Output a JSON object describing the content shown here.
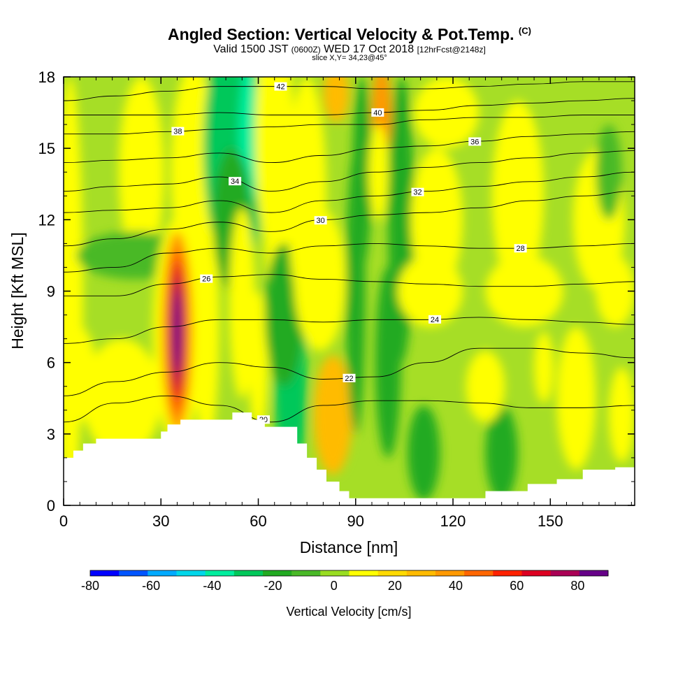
{
  "header": {
    "title": "Angled Section: Vertical Velocity & Pot.Temp.",
    "title_unit": "(C)",
    "valid_a": "Valid 1500 JST",
    "valid_z": "(0600Z)",
    "valid_b": "WED 17 Oct 2018",
    "fcst": "[12hrFcst@2148z]",
    "slice": "slice X,Y= 34,23@45°"
  },
  "chart_data": {
    "type": "heatmap",
    "xlabel": "Distance [nm]",
    "ylabel": "Height [Kft MSL]",
    "xlim": [
      0,
      176
    ],
    "ylim": [
      0,
      18
    ],
    "xticks": [
      "0",
      "30",
      "60",
      "90",
      "120",
      "150"
    ],
    "xtick_values": [
      0,
      30,
      60,
      90,
      120,
      150
    ],
    "yticks": [
      "0",
      "3",
      "6",
      "9",
      "12",
      "15",
      "18"
    ],
    "ytick_values": [
      0,
      3,
      6,
      9,
      12,
      15,
      18
    ],
    "colorbar": {
      "label": "Vertical Velocity [cm/s]",
      "ticks": [
        "-80",
        "-60",
        "-40",
        "-20",
        "0",
        "20",
        "40",
        "60",
        "80"
      ],
      "tick_values": [
        -80,
        -60,
        -40,
        -20,
        0,
        20,
        40,
        60,
        80
      ],
      "range": [
        -80,
        90
      ],
      "colors": [
        "#0000ff",
        "#0055ff",
        "#00aaff",
        "#00d7ea",
        "#00ee9e",
        "#00c85a",
        "#22aa22",
        "#4ab928",
        "#99dd22",
        "#ffff00",
        "#ffda00",
        "#ffbb00",
        "#ff9900",
        "#ff6600",
        "#ff2200",
        "#dd0022",
        "#aa0055",
        "#660088"
      ]
    },
    "vertical_velocity_features": [
      {
        "x": 35,
        "y": 7.2,
        "value": 88
      },
      {
        "x": 83,
        "y": 3.8,
        "value": 24
      },
      {
        "x": 85,
        "y": 17.5,
        "value": 32
      },
      {
        "x": 98,
        "y": 16.5,
        "value": 40
      },
      {
        "x": 57,
        "y": 15.5,
        "value": -38
      },
      {
        "x": 90,
        "y": 9.0,
        "value": -22
      },
      {
        "x": 111,
        "y": 2.2,
        "value": -15
      },
      {
        "x": 135,
        "y": 2.2,
        "value": -18
      },
      {
        "x": 70,
        "y": 5.0,
        "value": -25
      }
    ],
    "isentropes": [
      {
        "value": 42,
        "heights": [
          17.0,
          17.2,
          17.4,
          17.6,
          17.6,
          17.6,
          17.5,
          17.5,
          17.6,
          17.7,
          17.8,
          17.8
        ]
      },
      {
        "value": 40,
        "heights": [
          16.4,
          16.4,
          16.4,
          16.5,
          16.4,
          16.4,
          16.5,
          16.6,
          16.8,
          16.9,
          17.0,
          17.1
        ]
      },
      {
        "value": 38,
        "heights": [
          15.6,
          15.6,
          15.7,
          15.8,
          15.9,
          16.0,
          16.0,
          16.2,
          16.3,
          16.3,
          16.4,
          16.4
        ]
      },
      {
        "value": 36,
        "heights": [
          14.4,
          14.5,
          14.6,
          14.8,
          14.4,
          14.7,
          15.0,
          15.1,
          15.3,
          15.5,
          15.6,
          15.7
        ]
      },
      {
        "value": 34,
        "heights": [
          13.2,
          13.4,
          13.5,
          13.8,
          13.2,
          13.6,
          14.0,
          14.2,
          14.4,
          14.6,
          14.8,
          14.9
        ]
      },
      {
        "value": 32,
        "heights": [
          12.3,
          12.4,
          12.5,
          12.8,
          12.3,
          12.8,
          13.0,
          13.2,
          13.4,
          13.6,
          13.8,
          14.0
        ]
      },
      {
        "value": 30,
        "heights": [
          10.9,
          11.2,
          11.6,
          11.9,
          11.5,
          12.0,
          12.2,
          12.3,
          12.5,
          12.8,
          13.0,
          13.2
        ]
      },
      {
        "value": 28,
        "heights": [
          9.8,
          10.0,
          10.6,
          10.8,
          10.6,
          10.9,
          11.0,
          10.9,
          10.8,
          10.8,
          10.9,
          11.0
        ]
      },
      {
        "value": 26,
        "heights": [
          8.8,
          8.8,
          9.3,
          9.6,
          9.7,
          9.5,
          9.4,
          9.3,
          9.2,
          9.2,
          9.3,
          9.4
        ]
      },
      {
        "value": 24,
        "heights": [
          6.8,
          7.0,
          7.5,
          7.8,
          7.8,
          7.7,
          7.8,
          7.8,
          7.9,
          7.8,
          7.7,
          7.6
        ]
      },
      {
        "value": 22,
        "heights": [
          4.6,
          5.2,
          5.6,
          6.0,
          5.8,
          5.3,
          5.4,
          6.0,
          6.6,
          6.6,
          6.4,
          6.2
        ]
      },
      {
        "value": 20,
        "heights": [
          3.5,
          4.3,
          4.6,
          4.2,
          3.5,
          4.2,
          4.4,
          4.4,
          4.3,
          4.1,
          4.1,
          4.2
        ]
      }
    ],
    "terrain": [
      [
        0,
        2
      ],
      [
        3,
        2
      ],
      [
        3,
        2.3
      ],
      [
        6,
        2.3
      ],
      [
        6,
        2.6
      ],
      [
        10,
        2.6
      ],
      [
        10,
        2.8
      ],
      [
        30,
        2.8
      ],
      [
        30,
        3.1
      ],
      [
        32,
        3.1
      ],
      [
        32,
        3.4
      ],
      [
        36,
        3.4
      ],
      [
        36,
        3.6
      ],
      [
        52,
        3.6
      ],
      [
        52,
        3.2
      ],
      [
        52,
        3.9
      ],
      [
        58,
        3.9
      ],
      [
        58,
        3.6
      ],
      [
        62,
        3.6
      ],
      [
        62,
        3.3
      ],
      [
        72,
        3.3
      ],
      [
        72,
        2.6
      ],
      [
        75,
        2.6
      ],
      [
        75,
        2.0
      ],
      [
        78,
        2.0
      ],
      [
        78,
        1.5
      ],
      [
        81,
        1.5
      ],
      [
        81,
        1.0
      ],
      [
        85,
        1.0
      ],
      [
        85,
        0.6
      ],
      [
        88,
        0.6
      ],
      [
        88,
        0.3
      ],
      [
        130,
        0.3
      ],
      [
        130,
        0.6
      ],
      [
        143,
        0.6
      ],
      [
        143,
        0.9
      ],
      [
        152,
        0.9
      ],
      [
        152,
        1.1
      ],
      [
        160,
        1.1
      ],
      [
        160,
        1.5
      ],
      [
        170,
        1.5
      ],
      [
        170,
        1.6
      ],
      [
        176,
        1.6
      ],
      [
        176,
        0
      ],
      [
        0,
        0
      ]
    ]
  }
}
